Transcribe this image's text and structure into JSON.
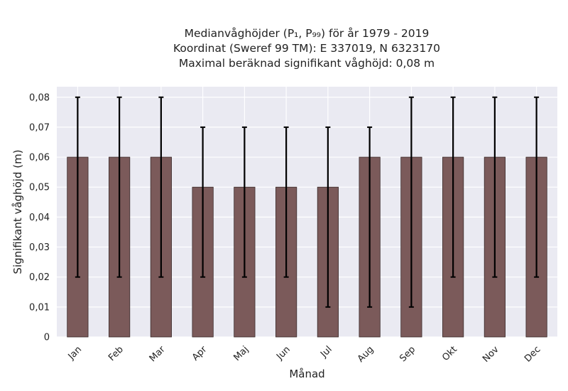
{
  "chart_data": {
    "type": "bar",
    "title_lines": [
      "Medianvåghöjder (P₁, P₉₉) för år 1979 - 2019",
      "Koordinat (Sweref 99 TM): E 337019, N 6323170",
      "Maximal beräknad signifikant våghöjd: 0,08 m"
    ],
    "xlabel": "Månad",
    "ylabel": "Signifikant våghöjd (m)",
    "categories": [
      "Jan",
      "Feb",
      "Mar",
      "Apr",
      "Maj",
      "Jun",
      "Jul",
      "Aug",
      "Sep",
      "Okt",
      "Nov",
      "Dec"
    ],
    "values": [
      0.06,
      0.06,
      0.06,
      0.05,
      0.05,
      0.05,
      0.05,
      0.06,
      0.06,
      0.06,
      0.06,
      0.06
    ],
    "err_low": [
      0.02,
      0.02,
      0.02,
      0.02,
      0.02,
      0.02,
      0.01,
      0.01,
      0.01,
      0.02,
      0.02,
      0.02
    ],
    "err_high": [
      0.08,
      0.08,
      0.08,
      0.07,
      0.07,
      0.07,
      0.07,
      0.07,
      0.08,
      0.08,
      0.08,
      0.08
    ],
    "ylim": [
      0,
      0.0835
    ],
    "yticks": [
      0,
      0.01,
      0.02,
      0.03,
      0.04,
      0.05,
      0.06,
      0.07,
      0.08
    ],
    "ytick_labels": [
      "0",
      "0,01",
      "0,02",
      "0,03",
      "0,04",
      "0,05",
      "0,06",
      "0,07",
      "0,08"
    ],
    "grid": true,
    "colors": {
      "bar": "#7b5a5a",
      "bar_edge": "#3a2a2a",
      "background": "#eaeaf2",
      "grid": "#ffffff",
      "error": "#000000"
    }
  }
}
